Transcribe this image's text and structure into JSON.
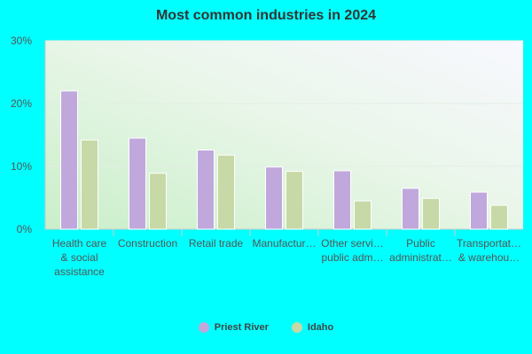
{
  "chart_data": {
    "type": "bar",
    "title": "Most common industries in 2024",
    "xlabel": "",
    "ylabel": "",
    "ylim": [
      0,
      30
    ],
    "yticks": [
      {
        "value": 0,
        "label": "0%"
      },
      {
        "value": 10,
        "label": "10%"
      },
      {
        "value": 20,
        "label": "20%"
      },
      {
        "value": 30,
        "label": "30%"
      }
    ],
    "categories": [
      [
        "Health care",
        "& social",
        "assistance"
      ],
      [
        "Construction"
      ],
      [
        "Retail trade"
      ],
      [
        "Manufactur…"
      ],
      [
        "Other servi…",
        "public adm…"
      ],
      [
        "Public",
        "administrat…"
      ],
      [
        "Transportat…",
        "& warehou…"
      ]
    ],
    "series": [
      {
        "name": "Priest River",
        "color": "#c0a8dc",
        "values": [
          22.0,
          14.5,
          12.6,
          9.9,
          9.3,
          6.5,
          5.9
        ]
      },
      {
        "name": "Idaho",
        "color": "#c7d9a6",
        "values": [
          14.2,
          8.9,
          11.8,
          9.2,
          4.5,
          4.9,
          3.8
        ]
      }
    ],
    "grid": true,
    "legend_position": "bottom-center"
  }
}
